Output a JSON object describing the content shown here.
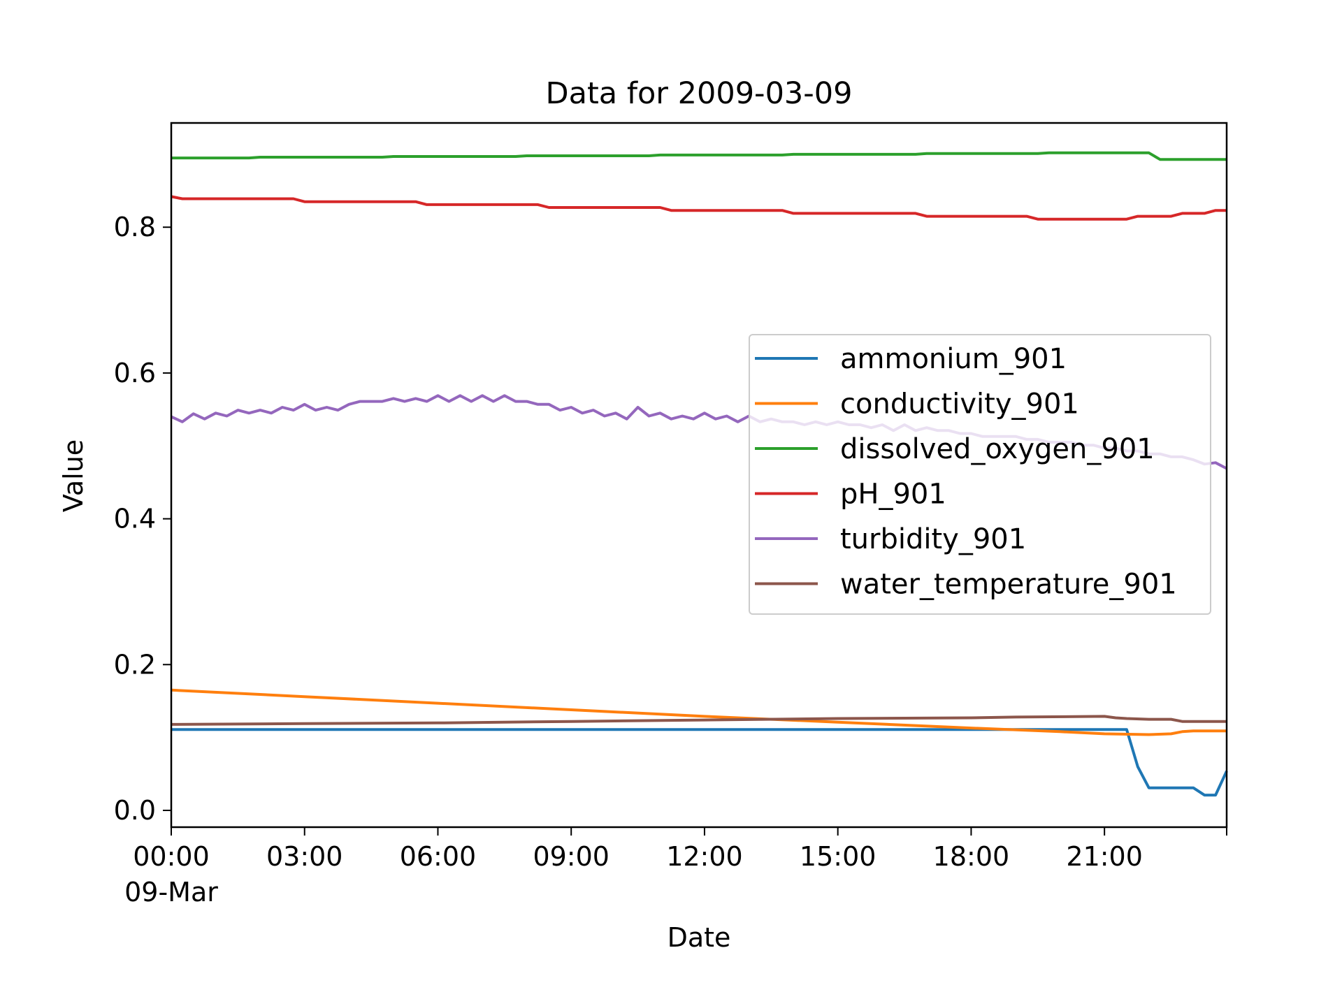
{
  "chart_data": {
    "type": "line",
    "title": "Data for 2009-03-09",
    "xlabel": "Date",
    "ylabel": "Value",
    "x_ticks": [
      "00:00",
      "03:00",
      "06:00",
      "09:00",
      "12:00",
      "15:00",
      "18:00",
      "21:00"
    ],
    "x_tick_date_label": "09-Mar",
    "xlim": [
      "2009-03-09 00:00",
      "2009-03-09 23:45"
    ],
    "ylim": [
      -0.023,
      0.943
    ],
    "y_ticks": [
      "0.0",
      "0.2",
      "0.4",
      "0.6",
      "0.8"
    ],
    "grid": false,
    "legend_position": "center-right",
    "series": [
      {
        "name": "ammonium_901",
        "color": "#1f77b4",
        "points": [
          [
            "00:00",
            0.111
          ],
          [
            "21:30",
            0.111
          ],
          [
            "21:45",
            0.06
          ],
          [
            "22:00",
            0.031
          ],
          [
            "22:15",
            0.031
          ],
          [
            "22:30",
            0.031
          ],
          [
            "22:45",
            0.031
          ],
          [
            "23:00",
            0.031
          ],
          [
            "23:15",
            0.021
          ],
          [
            "23:30",
            0.021
          ],
          [
            "23:45",
            0.054
          ]
        ]
      },
      {
        "name": "conductivity_901",
        "color": "#ff7f0e",
        "points": [
          [
            "00:00",
            0.165
          ],
          [
            "03:00",
            0.156
          ],
          [
            "06:00",
            0.147
          ],
          [
            "09:00",
            0.138
          ],
          [
            "12:00",
            0.129
          ],
          [
            "15:00",
            0.121
          ],
          [
            "18:00",
            0.113
          ],
          [
            "20:00",
            0.108
          ],
          [
            "21:00",
            0.105
          ],
          [
            "22:00",
            0.104
          ],
          [
            "22:30",
            0.105
          ],
          [
            "22:45",
            0.108
          ],
          [
            "23:00",
            0.109
          ],
          [
            "23:45",
            0.109
          ]
        ]
      },
      {
        "name": "dissolved_oxygen_901",
        "color": "#2ca02c",
        "points": [
          [
            "00:00",
            0.895
          ],
          [
            "01:45",
            0.895
          ],
          [
            "02:00",
            0.896
          ],
          [
            "04:45",
            0.896
          ],
          [
            "05:00",
            0.897
          ],
          [
            "07:45",
            0.897
          ],
          [
            "08:00",
            0.898
          ],
          [
            "10:45",
            0.898
          ],
          [
            "11:00",
            0.899
          ],
          [
            "13:45",
            0.899
          ],
          [
            "14:00",
            0.9
          ],
          [
            "16:45",
            0.9
          ],
          [
            "17:00",
            0.901
          ],
          [
            "19:30",
            0.901
          ],
          [
            "19:45",
            0.902
          ],
          [
            "22:00",
            0.902
          ],
          [
            "22:15",
            0.893
          ],
          [
            "23:45",
            0.893
          ]
        ]
      },
      {
        "name": "pH_901",
        "color": "#d62728",
        "points": [
          [
            "00:00",
            0.842
          ],
          [
            "00:15",
            0.839
          ],
          [
            "02:45",
            0.839
          ],
          [
            "03:00",
            0.835
          ],
          [
            "05:30",
            0.835
          ],
          [
            "05:45",
            0.831
          ],
          [
            "08:15",
            0.831
          ],
          [
            "08:30",
            0.827
          ],
          [
            "11:00",
            0.827
          ],
          [
            "11:15",
            0.823
          ],
          [
            "13:45",
            0.823
          ],
          [
            "14:00",
            0.819
          ],
          [
            "16:45",
            0.819
          ],
          [
            "17:00",
            0.815
          ],
          [
            "19:15",
            0.815
          ],
          [
            "19:30",
            0.811
          ],
          [
            "21:30",
            0.811
          ],
          [
            "21:45",
            0.815
          ],
          [
            "22:30",
            0.815
          ],
          [
            "22:45",
            0.819
          ],
          [
            "23:15",
            0.819
          ],
          [
            "23:30",
            0.823
          ],
          [
            "23:45",
            0.823
          ]
        ]
      },
      {
        "name": "turbidity_901",
        "color": "#9467bd",
        "points": [
          [
            "00:00",
            0.54
          ],
          [
            "00:15",
            0.533
          ],
          [
            "00:30",
            0.544
          ],
          [
            "00:45",
            0.537
          ],
          [
            "01:00",
            0.545
          ],
          [
            "01:15",
            0.541
          ],
          [
            "01:30",
            0.549
          ],
          [
            "01:45",
            0.545
          ],
          [
            "02:00",
            0.549
          ],
          [
            "02:15",
            0.545
          ],
          [
            "02:30",
            0.553
          ],
          [
            "02:45",
            0.549
          ],
          [
            "03:00",
            0.557
          ],
          [
            "03:15",
            0.549
          ],
          [
            "03:30",
            0.553
          ],
          [
            "03:45",
            0.549
          ],
          [
            "04:00",
            0.557
          ],
          [
            "04:15",
            0.561
          ],
          [
            "04:30",
            0.561
          ],
          [
            "04:45",
            0.561
          ],
          [
            "05:00",
            0.565
          ],
          [
            "05:15",
            0.561
          ],
          [
            "05:30",
            0.565
          ],
          [
            "05:45",
            0.561
          ],
          [
            "06:00",
            0.569
          ],
          [
            "06:15",
            0.561
          ],
          [
            "06:30",
            0.569
          ],
          [
            "06:45",
            0.561
          ],
          [
            "07:00",
            0.569
          ],
          [
            "07:15",
            0.561
          ],
          [
            "07:30",
            0.569
          ],
          [
            "07:45",
            0.561
          ],
          [
            "08:00",
            0.561
          ],
          [
            "08:15",
            0.557
          ],
          [
            "08:30",
            0.557
          ],
          [
            "08:45",
            0.549
          ],
          [
            "09:00",
            0.553
          ],
          [
            "09:15",
            0.545
          ],
          [
            "09:30",
            0.549
          ],
          [
            "09:45",
            0.541
          ],
          [
            "10:00",
            0.545
          ],
          [
            "10:15",
            0.537
          ],
          [
            "10:30",
            0.553
          ],
          [
            "10:45",
            0.541
          ],
          [
            "11:00",
            0.545
          ],
          [
            "11:15",
            0.537
          ],
          [
            "11:30",
            0.541
          ],
          [
            "11:45",
            0.537
          ],
          [
            "12:00",
            0.545
          ],
          [
            "12:15",
            0.537
          ],
          [
            "12:30",
            0.541
          ],
          [
            "12:45",
            0.533
          ],
          [
            "13:00",
            0.541
          ],
          [
            "13:15",
            0.533
          ],
          [
            "13:30",
            0.537
          ],
          [
            "13:45",
            0.533
          ],
          [
            "14:00",
            0.533
          ],
          [
            "14:15",
            0.529
          ],
          [
            "14:30",
            0.533
          ],
          [
            "14:45",
            0.529
          ],
          [
            "15:00",
            0.533
          ],
          [
            "15:15",
            0.529
          ],
          [
            "15:30",
            0.529
          ],
          [
            "15:45",
            0.525
          ],
          [
            "16:00",
            0.529
          ],
          [
            "16:15",
            0.521
          ],
          [
            "16:30",
            0.529
          ],
          [
            "16:45",
            0.521
          ],
          [
            "17:00",
            0.525
          ],
          [
            "17:15",
            0.521
          ],
          [
            "17:30",
            0.521
          ],
          [
            "17:45",
            0.517
          ],
          [
            "18:00",
            0.517
          ],
          [
            "18:15",
            0.513
          ],
          [
            "18:30",
            0.513
          ],
          [
            "18:45",
            0.513
          ],
          [
            "19:00",
            0.513
          ],
          [
            "19:15",
            0.509
          ],
          [
            "19:30",
            0.509
          ],
          [
            "19:45",
            0.505
          ],
          [
            "20:00",
            0.505
          ],
          [
            "20:15",
            0.505
          ],
          [
            "20:30",
            0.501
          ],
          [
            "20:45",
            0.501
          ],
          [
            "21:00",
            0.497
          ],
          [
            "21:15",
            0.497
          ],
          [
            "21:30",
            0.493
          ],
          [
            "21:45",
            0.493
          ],
          [
            "22:00",
            0.489
          ],
          [
            "22:15",
            0.489
          ],
          [
            "22:30",
            0.485
          ],
          [
            "22:45",
            0.485
          ],
          [
            "23:00",
            0.481
          ],
          [
            "23:15",
            0.475
          ],
          [
            "23:30",
            0.477
          ],
          [
            "23:45",
            0.469
          ]
        ]
      },
      {
        "name": "water_temperature_901",
        "color": "#8c564b",
        "points": [
          [
            "00:00",
            0.118
          ],
          [
            "03:00",
            0.119
          ],
          [
            "06:00",
            0.12
          ],
          [
            "09:00",
            0.122
          ],
          [
            "12:00",
            0.124
          ],
          [
            "15:00",
            0.126
          ],
          [
            "18:00",
            0.127
          ],
          [
            "19:00",
            0.128
          ],
          [
            "21:00",
            0.129
          ],
          [
            "21:15",
            0.127
          ],
          [
            "21:30",
            0.126
          ],
          [
            "22:00",
            0.125
          ],
          [
            "22:30",
            0.125
          ],
          [
            "22:45",
            0.122
          ],
          [
            "23:45",
            0.122
          ]
        ]
      }
    ]
  }
}
